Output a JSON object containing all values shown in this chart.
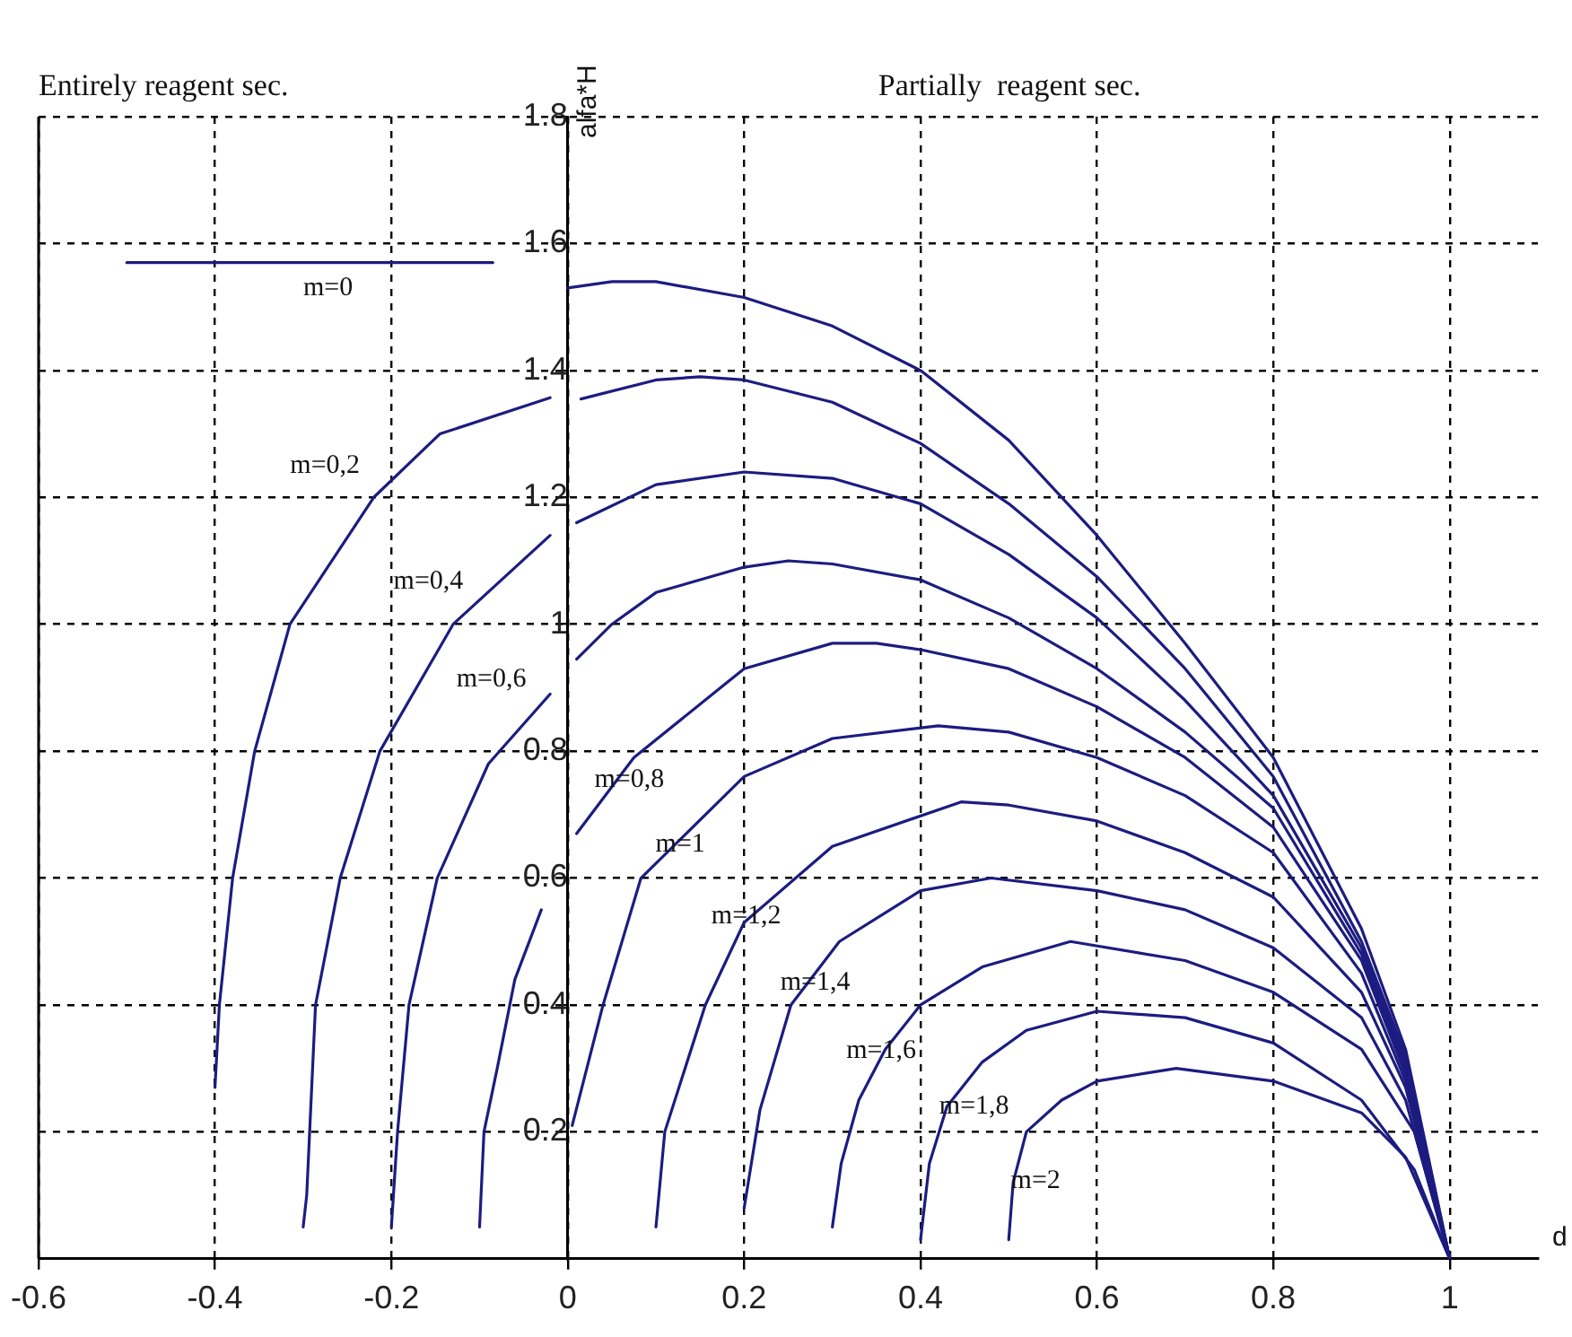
{
  "chart_data": {
    "type": "line",
    "xlabel": "d",
    "ylabel": "alfa*H",
    "xlim": [
      -0.6,
      1.1
    ],
    "ylim": [
      0,
      1.8
    ],
    "xticks": [
      -0.6,
      -0.4,
      -0.2,
      0,
      0.2,
      0.4,
      0.6,
      0.8,
      1
    ],
    "yticks": [
      0.2,
      0.4,
      0.6,
      0.8,
      1,
      1.2,
      1.4,
      1.6,
      1.8
    ],
    "grid": true,
    "annotations": [
      "Entirely reagent sec.",
      "Partially  reagent sec.",
      "m=0",
      "m=0,2",
      "m=0,4",
      "m=0,6",
      "m=0,8",
      "m=1",
      "m=1,2",
      "m=1,4",
      "m=1,6",
      "m=1,8",
      "m=2"
    ],
    "series": [
      {
        "color": "#1c1c80",
        "x": [
          -0.5,
          -0.085
        ],
        "values": [
          1.57,
          1.57
        ]
      },
      {
        "color": "#1c1c80",
        "x": [
          0,
          0.05,
          0.1,
          0.2,
          0.3,
          0.4,
          0.5,
          0.6,
          0.7,
          0.8,
          0.9,
          0.95,
          1
        ],
        "values": [
          1.53,
          1.54,
          1.54,
          1.515,
          1.47,
          1.4,
          1.29,
          1.14,
          0.97,
          0.79,
          0.52,
          0.33,
          0
        ]
      },
      {
        "color": "#1c1c80",
        "x": [
          -0.4,
          -0.395,
          -0.38,
          -0.355,
          -0.315,
          -0.22,
          -0.145,
          -0.02
        ],
        "values": [
          0.27,
          0.4,
          0.6,
          0.8,
          1,
          1.2,
          1.3,
          1.357
        ]
      },
      {
        "color": "#1c1c80",
        "x": [
          0.015,
          0.1,
          0.15,
          0.2,
          0.3,
          0.4,
          0.5,
          0.6,
          0.7,
          0.8,
          0.9,
          0.95,
          1
        ],
        "values": [
          1.355,
          1.385,
          1.39,
          1.385,
          1.35,
          1.285,
          1.19,
          1.075,
          0.93,
          0.76,
          0.5,
          0.32,
          0
        ]
      },
      {
        "color": "#1c1c80",
        "x": [
          -0.3,
          -0.296,
          -0.286,
          -0.258,
          -0.213,
          -0.13,
          -0.02
        ],
        "values": [
          0.05,
          0.1,
          0.4,
          0.6,
          0.8,
          1,
          1.14
        ]
      },
      {
        "color": "#1c1c80",
        "x": [
          0.01,
          0.1,
          0.2,
          0.3,
          0.4,
          0.5,
          0.6,
          0.7,
          0.8,
          0.9,
          0.95,
          1
        ],
        "values": [
          1.16,
          1.22,
          1.24,
          1.23,
          1.19,
          1.11,
          1.01,
          0.88,
          0.73,
          0.49,
          0.31,
          0
        ]
      },
      {
        "color": "#1c1c80",
        "x": [
          -0.2,
          -0.193,
          -0.18,
          -0.148,
          -0.09,
          -0.02
        ],
        "values": [
          0.05,
          0.2,
          0.4,
          0.6,
          0.78,
          0.89
        ]
      },
      {
        "color": "#1c1c80",
        "x": [
          0.01,
          0.05,
          0.1,
          0.2,
          0.25,
          0.3,
          0.4,
          0.5,
          0.6,
          0.7,
          0.8,
          0.9,
          0.95,
          1
        ],
        "values": [
          0.945,
          1,
          1.05,
          1.09,
          1.1,
          1.095,
          1.07,
          1.01,
          0.93,
          0.83,
          0.71,
          0.48,
          0.3,
          0
        ]
      },
      {
        "color": "#1c1c80",
        "x": [
          -0.1,
          -0.095,
          -0.08,
          -0.06,
          -0.03
        ],
        "values": [
          0.05,
          0.2,
          0.3,
          0.44,
          0.55
        ]
      },
      {
        "color": "#1c1c80",
        "x": [
          0.01,
          0.075,
          0.2,
          0.3,
          0.35,
          0.4,
          0.5,
          0.6,
          0.7,
          0.8,
          0.9,
          0.95,
          1
        ],
        "values": [
          0.67,
          0.79,
          0.93,
          0.97,
          0.97,
          0.96,
          0.93,
          0.87,
          0.79,
          0.68,
          0.47,
          0.29,
          0
        ]
      },
      {
        "color": "#1c1c80",
        "x": [
          0.005,
          0.04,
          0.083,
          0.2,
          0.3,
          0.42,
          0.5,
          0.6,
          0.7,
          0.8,
          0.9,
          0.95,
          1
        ],
        "values": [
          0.21,
          0.4,
          0.6,
          0.76,
          0.82,
          0.84,
          0.83,
          0.79,
          0.73,
          0.64,
          0.45,
          0.28,
          0
        ]
      },
      {
        "color": "#1c1c80",
        "x": [
          0.1,
          0.11,
          0.156,
          0.2,
          0.3,
          0.446,
          0.5,
          0.6,
          0.7,
          0.8,
          0.9,
          0.95,
          1
        ],
        "values": [
          0.05,
          0.2,
          0.4,
          0.53,
          0.65,
          0.72,
          0.715,
          0.69,
          0.64,
          0.57,
          0.42,
          0.27,
          0
        ]
      },
      {
        "color": "#1c1c80",
        "x": [
          0.2,
          0.218,
          0.253,
          0.308,
          0.4,
          0.48,
          0.6,
          0.7,
          0.8,
          0.9,
          0.95,
          1
        ],
        "values": [
          0.08,
          0.235,
          0.4,
          0.5,
          0.58,
          0.6,
          0.58,
          0.55,
          0.49,
          0.38,
          0.25,
          0
        ]
      },
      {
        "color": "#1c1c80",
        "x": [
          0.3,
          0.31,
          0.33,
          0.36,
          0.4,
          0.47,
          0.57,
          0.7,
          0.8,
          0.9,
          0.96,
          1
        ],
        "values": [
          0.05,
          0.15,
          0.25,
          0.33,
          0.4,
          0.46,
          0.5,
          0.47,
          0.42,
          0.33,
          0.2,
          0
        ]
      },
      {
        "color": "#1c1c80",
        "x": [
          0.4,
          0.41,
          0.43,
          0.47,
          0.52,
          0.6,
          0.7,
          0.8,
          0.9,
          0.96,
          1
        ],
        "values": [
          0.03,
          0.15,
          0.24,
          0.31,
          0.36,
          0.39,
          0.38,
          0.34,
          0.25,
          0.14,
          0
        ]
      },
      {
        "color": "#1c1c80",
        "x": [
          0.5,
          0.505,
          0.52,
          0.56,
          0.6,
          0.69,
          0.8,
          0.9,
          0.95,
          1
        ],
        "values": [
          0.03,
          0.12,
          0.2,
          0.25,
          0.28,
          0.3,
          0.28,
          0.23,
          0.16,
          0
        ]
      }
    ]
  }
}
